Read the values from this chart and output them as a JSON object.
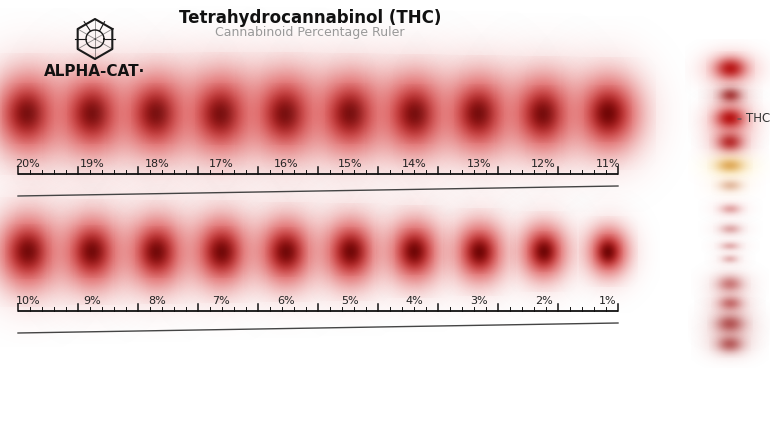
{
  "title": "Tetrahydrocannabinol (THC)",
  "subtitle": "Cannabinoid Percentage Ruler",
  "brand": "ALPHA-CAT·",
  "bg_color": "#ffffff",
  "row1_labels": [
    "20%",
    "19%",
    "18%",
    "17%",
    "16%",
    "15%",
    "14%",
    "13%",
    "12%",
    "11%"
  ],
  "row2_labels": [
    "10%",
    "9%",
    "8%",
    "7%",
    "6%",
    "5%",
    "4%",
    "3%",
    "2%",
    "1%"
  ],
  "row1_sizes": [
    1.0,
    1.0,
    1.0,
    1.02,
    1.01,
    1.0,
    0.98,
    0.97,
    0.95,
    0.93
  ],
  "row2_sizes": [
    0.9,
    0.87,
    0.85,
    0.84,
    0.82,
    0.8,
    0.76,
    0.72,
    0.66,
    0.58
  ],
  "thc_label": "THC",
  "ruler_color": "#111111",
  "diagonal_color": "#444444",
  "fig_width": 7.7,
  "fig_height": 4.24,
  "dpi": 100
}
